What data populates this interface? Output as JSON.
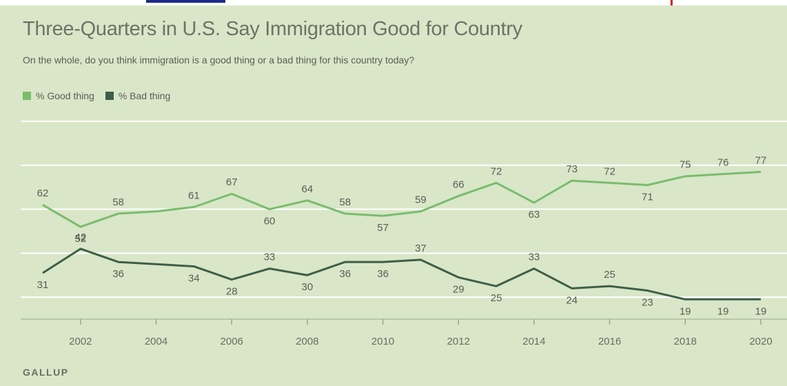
{
  "header": {
    "title": "Three-Quarters in U.S. Say Immigration Good for Country",
    "subtitle": "On the whole, do you think immigration is a good thing or a bad thing for this country today?"
  },
  "footer": {
    "source": "GALLUP"
  },
  "colors": {
    "good": "#79bd6c",
    "bad": "#3d5e48",
    "background": "#d9e6c8",
    "grid": "#ffffff"
  },
  "chart_data": {
    "type": "line",
    "title": "Three-Quarters in U.S. Say Immigration Good for Country",
    "subtitle": "On the whole, do you think immigration is a good thing or a bad thing for this country today?",
    "x": [
      2001,
      2002,
      2003,
      2004,
      2005,
      2006,
      2007,
      2008,
      2009,
      2010,
      2011,
      2012,
      2013,
      2014,
      2015,
      2016,
      2017,
      2018,
      2019,
      2020
    ],
    "x_ticks": [
      2002,
      2004,
      2006,
      2008,
      2010,
      2012,
      2014,
      2016,
      2018,
      2020
    ],
    "x_tick_labels": [
      "2002",
      "2004",
      "2006",
      "2008",
      "2010",
      "2012",
      "2014",
      "2016",
      "2018",
      "2020"
    ],
    "ylim": [
      10,
      100
    ],
    "grid": true,
    "legend_position": "top-left",
    "series": [
      {
        "name": "% Good thing",
        "color": "#79bd6c",
        "values": [
          62,
          52,
          58,
          59,
          61,
          67,
          60,
          64,
          58,
          57,
          59,
          66,
          72,
          63,
          73,
          72,
          71,
          75,
          76,
          77
        ],
        "labels": [
          "62",
          "52",
          "58",
          null,
          "61",
          "67",
          "60",
          "64",
          "58",
          "57",
          "59",
          "66",
          "72",
          "63",
          "73",
          "72",
          "71",
          "75",
          "76",
          "77"
        ]
      },
      {
        "name": "% Bad thing",
        "color": "#3d5e48",
        "values": [
          31,
          42,
          36,
          35,
          34,
          28,
          33,
          30,
          36,
          36,
          37,
          29,
          25,
          33,
          24,
          25,
          23,
          19,
          19,
          19
        ],
        "labels": [
          "31",
          "42",
          "36",
          null,
          "34",
          "28",
          "33",
          "30",
          "36",
          "36",
          "37",
          "29",
          "25",
          "33",
          "24",
          "25",
          "23",
          "19",
          "19",
          "19"
        ]
      }
    ]
  }
}
